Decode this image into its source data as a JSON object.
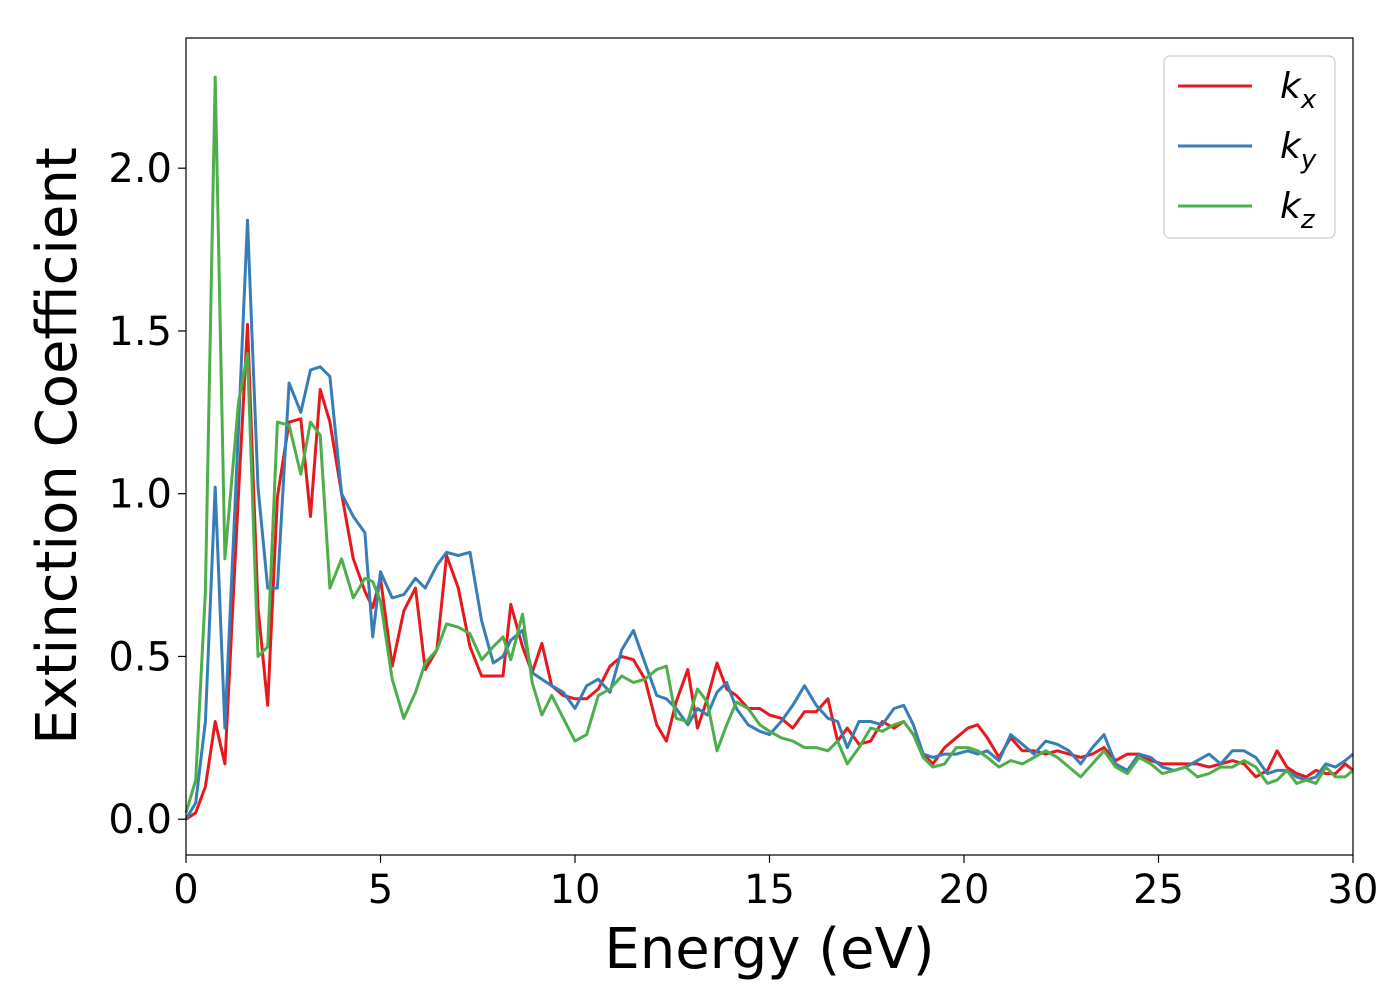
{
  "chart_data": {
    "type": "line",
    "title": "",
    "xlabel": "Energy (eV)",
    "ylabel": "Extinction Coefficient",
    "xlim": [
      0,
      30
    ],
    "ylim": [
      -0.11,
      2.4
    ],
    "xticks": [
      0,
      5,
      10,
      15,
      20,
      25,
      30
    ],
    "xtick_labels": [
      "0",
      "5",
      "10",
      "15",
      "20",
      "25",
      "30"
    ],
    "yticks": [
      0.0,
      0.5,
      1.0,
      1.5,
      2.0
    ],
    "ytick_labels": [
      "0.0",
      "0.5",
      "1.0",
      "1.5",
      "2.0"
    ],
    "grid": false,
    "legend_position": "top-right",
    "series": [
      {
        "name": "k_x",
        "label_main": "k",
        "label_sub": "x",
        "color": "#e41a1c",
        "x": [
          0,
          0.25,
          0.5,
          0.75,
          1.0,
          1.35,
          1.58,
          1.85,
          2.1,
          2.35,
          2.65,
          2.95,
          3.2,
          3.45,
          3.7,
          4.0,
          4.3,
          4.6,
          4.8,
          5.0,
          5.3,
          5.6,
          5.9,
          6.15,
          6.45,
          6.7,
          7.0,
          7.3,
          7.6,
          7.9,
          8.15,
          8.35,
          8.65,
          8.9,
          9.15,
          9.4,
          9.7,
          10.0,
          10.3,
          10.6,
          10.9,
          11.2,
          11.5,
          11.8,
          12.1,
          12.35,
          12.6,
          12.9,
          13.15,
          13.4,
          13.65,
          13.9,
          14.15,
          14.45,
          14.75,
          15.0,
          15.3,
          15.6,
          15.9,
          16.2,
          16.5,
          16.75,
          17.0,
          17.3,
          17.6,
          17.9,
          18.2,
          18.45,
          18.7,
          18.95,
          19.2,
          19.5,
          19.8,
          20.1,
          20.35,
          20.6,
          20.9,
          21.2,
          21.5,
          21.8,
          22.1,
          22.4,
          22.7,
          23.0,
          23.3,
          23.6,
          23.9,
          24.2,
          24.5,
          24.8,
          25.1,
          25.4,
          25.7,
          26.0,
          26.3,
          26.6,
          26.9,
          27.2,
          27.5,
          27.8,
          28.05,
          28.3,
          28.55,
          28.8,
          29.05,
          29.3,
          29.55,
          29.8,
          30.0
        ],
        "y": [
          0.0,
          0.02,
          0.1,
          0.3,
          0.17,
          1.0,
          1.52,
          0.65,
          0.35,
          0.99,
          1.22,
          1.23,
          0.93,
          1.32,
          1.22,
          1.0,
          0.8,
          0.7,
          0.65,
          0.74,
          0.47,
          0.64,
          0.71,
          0.46,
          0.52,
          0.81,
          0.71,
          0.53,
          0.44,
          0.44,
          0.44,
          0.66,
          0.53,
          0.45,
          0.54,
          0.41,
          0.38,
          0.37,
          0.37,
          0.4,
          0.47,
          0.5,
          0.49,
          0.43,
          0.29,
          0.24,
          0.36,
          0.46,
          0.28,
          0.37,
          0.48,
          0.4,
          0.38,
          0.34,
          0.34,
          0.32,
          0.31,
          0.28,
          0.33,
          0.33,
          0.37,
          0.24,
          0.28,
          0.23,
          0.24,
          0.3,
          0.28,
          0.3,
          0.26,
          0.2,
          0.17,
          0.22,
          0.25,
          0.28,
          0.29,
          0.25,
          0.19,
          0.25,
          0.21,
          0.21,
          0.2,
          0.21,
          0.2,
          0.19,
          0.2,
          0.22,
          0.18,
          0.2,
          0.2,
          0.18,
          0.17,
          0.17,
          0.17,
          0.17,
          0.16,
          0.17,
          0.18,
          0.17,
          0.13,
          0.15,
          0.21,
          0.16,
          0.14,
          0.13,
          0.15,
          0.14,
          0.14,
          0.17,
          0.15
        ]
      },
      {
        "name": "k_y",
        "label_main": "k",
        "label_sub": "y",
        "color": "#377eb8",
        "x": [
          0,
          0.25,
          0.5,
          0.75,
          1.0,
          1.35,
          1.58,
          1.85,
          2.1,
          2.35,
          2.65,
          2.95,
          3.2,
          3.45,
          3.7,
          4.0,
          4.3,
          4.6,
          4.8,
          5.0,
          5.3,
          5.6,
          5.9,
          6.15,
          6.45,
          6.7,
          7.0,
          7.3,
          7.6,
          7.9,
          8.15,
          8.35,
          8.65,
          8.9,
          9.15,
          9.4,
          9.7,
          10.0,
          10.3,
          10.6,
          10.9,
          11.2,
          11.5,
          11.8,
          12.1,
          12.35,
          12.6,
          12.9,
          13.15,
          13.4,
          13.65,
          13.9,
          14.15,
          14.45,
          14.75,
          15.0,
          15.3,
          15.6,
          15.9,
          16.2,
          16.5,
          16.75,
          17.0,
          17.3,
          17.6,
          17.9,
          18.2,
          18.45,
          18.7,
          18.95,
          19.2,
          19.5,
          19.8,
          20.1,
          20.35,
          20.6,
          20.9,
          21.2,
          21.5,
          21.8,
          22.1,
          22.4,
          22.7,
          23.0,
          23.3,
          23.6,
          23.9,
          24.2,
          24.5,
          24.8,
          25.1,
          25.4,
          25.7,
          26.0,
          26.3,
          26.6,
          26.9,
          27.2,
          27.5,
          27.8,
          28.05,
          28.3,
          28.55,
          28.8,
          29.05,
          29.3,
          29.55,
          29.8,
          30.0
        ],
        "y": [
          0.0,
          0.05,
          0.3,
          1.02,
          0.28,
          1.2,
          1.84,
          1.02,
          0.71,
          0.71,
          1.34,
          1.25,
          1.38,
          1.39,
          1.36,
          1.0,
          0.93,
          0.88,
          0.56,
          0.76,
          0.68,
          0.69,
          0.74,
          0.71,
          0.78,
          0.82,
          0.81,
          0.82,
          0.61,
          0.48,
          0.5,
          0.55,
          0.58,
          0.45,
          0.43,
          0.41,
          0.39,
          0.34,
          0.41,
          0.43,
          0.39,
          0.52,
          0.58,
          0.48,
          0.38,
          0.37,
          0.34,
          0.29,
          0.34,
          0.32,
          0.39,
          0.42,
          0.34,
          0.29,
          0.27,
          0.26,
          0.3,
          0.35,
          0.41,
          0.35,
          0.31,
          0.3,
          0.22,
          0.3,
          0.3,
          0.29,
          0.34,
          0.35,
          0.29,
          0.2,
          0.19,
          0.2,
          0.2,
          0.21,
          0.2,
          0.21,
          0.18,
          0.26,
          0.23,
          0.2,
          0.24,
          0.23,
          0.21,
          0.17,
          0.22,
          0.26,
          0.17,
          0.15,
          0.2,
          0.19,
          0.16,
          0.15,
          0.16,
          0.18,
          0.2,
          0.17,
          0.21,
          0.21,
          0.19,
          0.14,
          0.15,
          0.15,
          0.13,
          0.12,
          0.13,
          0.17,
          0.16,
          0.18,
          0.2
        ]
      },
      {
        "name": "k_z",
        "label_main": "k",
        "label_sub": "z",
        "color": "#4daf4a",
        "x": [
          0,
          0.25,
          0.5,
          0.75,
          1.0,
          1.35,
          1.58,
          1.85,
          2.1,
          2.35,
          2.65,
          2.95,
          3.2,
          3.45,
          3.7,
          4.0,
          4.3,
          4.6,
          4.8,
          5.0,
          5.3,
          5.6,
          5.9,
          6.15,
          6.45,
          6.7,
          7.0,
          7.3,
          7.6,
          7.9,
          8.15,
          8.35,
          8.65,
          8.9,
          9.15,
          9.4,
          9.7,
          10.0,
          10.3,
          10.6,
          10.9,
          11.2,
          11.5,
          11.8,
          12.1,
          12.35,
          12.6,
          12.9,
          13.15,
          13.4,
          13.65,
          13.9,
          14.15,
          14.45,
          14.75,
          15.0,
          15.3,
          15.6,
          15.9,
          16.2,
          16.5,
          16.75,
          17.0,
          17.3,
          17.6,
          17.9,
          18.2,
          18.45,
          18.7,
          18.95,
          19.2,
          19.5,
          19.8,
          20.1,
          20.35,
          20.6,
          20.9,
          21.2,
          21.5,
          21.8,
          22.1,
          22.4,
          22.7,
          23.0,
          23.3,
          23.6,
          23.9,
          24.2,
          24.5,
          24.8,
          25.1,
          25.4,
          25.7,
          26.0,
          26.3,
          26.6,
          26.9,
          27.2,
          27.5,
          27.8,
          28.05,
          28.3,
          28.55,
          28.8,
          29.05,
          29.3,
          29.55,
          29.8,
          30.0
        ],
        "y": [
          0.02,
          0.12,
          0.7,
          2.28,
          0.8,
          1.28,
          1.43,
          0.5,
          0.53,
          1.22,
          1.21,
          1.06,
          1.22,
          1.18,
          0.71,
          0.8,
          0.68,
          0.74,
          0.73,
          0.67,
          0.43,
          0.31,
          0.39,
          0.48,
          0.52,
          0.6,
          0.59,
          0.57,
          0.49,
          0.53,
          0.56,
          0.49,
          0.63,
          0.42,
          0.32,
          0.38,
          0.31,
          0.24,
          0.26,
          0.38,
          0.4,
          0.44,
          0.42,
          0.43,
          0.46,
          0.47,
          0.31,
          0.3,
          0.4,
          0.36,
          0.21,
          0.29,
          0.36,
          0.34,
          0.29,
          0.27,
          0.25,
          0.24,
          0.22,
          0.22,
          0.21,
          0.24,
          0.17,
          0.22,
          0.28,
          0.27,
          0.29,
          0.3,
          0.26,
          0.19,
          0.16,
          0.17,
          0.22,
          0.22,
          0.21,
          0.19,
          0.16,
          0.18,
          0.17,
          0.19,
          0.21,
          0.19,
          0.16,
          0.13,
          0.17,
          0.21,
          0.16,
          0.14,
          0.19,
          0.17,
          0.14,
          0.15,
          0.16,
          0.13,
          0.14,
          0.16,
          0.16,
          0.18,
          0.16,
          0.11,
          0.12,
          0.15,
          0.11,
          0.12,
          0.11,
          0.16,
          0.13,
          0.13,
          0.15
        ]
      }
    ]
  }
}
